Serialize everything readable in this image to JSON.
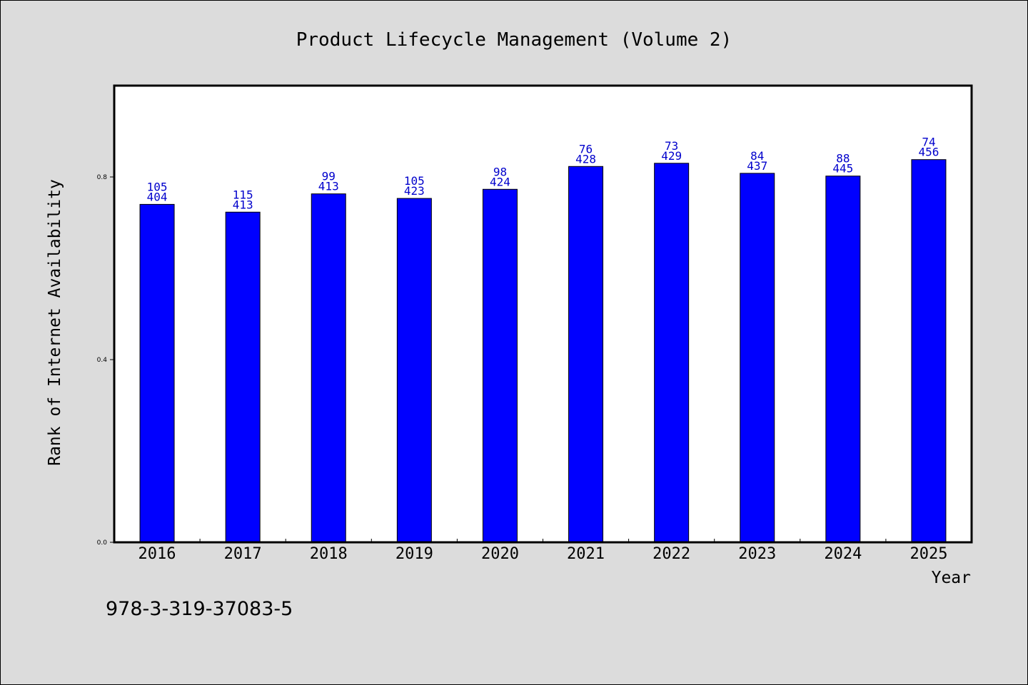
{
  "chart_data": {
    "type": "bar",
    "title": "Product Lifecycle Management (Volume 2)",
    "xlabel": "Year",
    "ylabel": "Rank of Internet Availability",
    "categories": [
      "2016",
      "2017",
      "2018",
      "2019",
      "2020",
      "2021",
      "2022",
      "2023",
      "2024",
      "2025"
    ],
    "series": [
      {
        "values": [
          0.74,
          0.723,
          0.763,
          0.753,
          0.773,
          0.823,
          0.83,
          0.808,
          0.802,
          0.838
        ],
        "labels_top": [
          "105",
          "115",
          "99",
          "105",
          "98",
          "76",
          "73",
          "84",
          "88",
          "74"
        ],
        "labels_bottom": [
          "404",
          "413",
          "413",
          "423",
          "424",
          "428",
          "429",
          "437",
          "445",
          "456"
        ],
        "color": "#0000ff"
      }
    ],
    "ylim": [
      0,
      1.0
    ],
    "yticks": [
      "0.0",
      "0.4",
      "0.8"
    ],
    "ytick_values": [
      0.0,
      0.4,
      0.8
    ],
    "grid": false,
    "label_color": "#0000cc"
  },
  "footer": {
    "isbn": "978-3-319-37083-5"
  }
}
